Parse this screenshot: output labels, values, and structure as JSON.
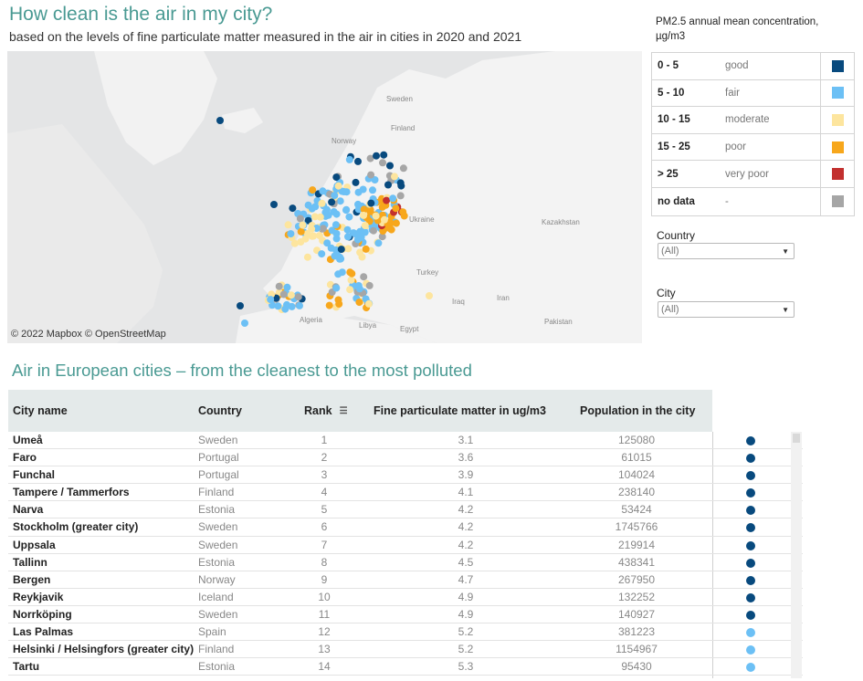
{
  "header": {
    "title": "How clean is the air in my city?",
    "subtitle": "based on the levels of fine particulate matter measured in the air in cities in 2020 and 2021"
  },
  "map": {
    "credit": "© 2022 Mapbox  © OpenStreetMap",
    "labels": [
      "Sweden",
      "Finland",
      "Norway",
      "Ukraine",
      "Kazakhstan",
      "Turkey",
      "Iraq",
      "Iran",
      "Algeria",
      "Libya",
      "Egypt",
      "Pakistan"
    ]
  },
  "legend": {
    "title": "PM2.5 annual mean concentration, µg/m3",
    "items": [
      {
        "range": "0 - 5",
        "label": "good",
        "color": "#084a7e"
      },
      {
        "range": "5 - 10",
        "label": "fair",
        "color": "#6cc0f5"
      },
      {
        "range": "10 - 15",
        "label": "moderate",
        "color": "#fde59e"
      },
      {
        "range": "15 - 25",
        "label": "poor",
        "color": "#f7a71c"
      },
      {
        "range": "> 25",
        "label": "very poor",
        "color": "#c2302f"
      },
      {
        "range": "no data",
        "label": "-",
        "color": "#a6a6a6"
      }
    ]
  },
  "filters": {
    "country_label": "Country",
    "country_value": "(All)",
    "city_label": "City",
    "city_value": "(All)"
  },
  "table": {
    "title": "Air in European cities – from the cleanest to the most polluted",
    "columns": {
      "city": "City name",
      "country": "Country",
      "rank": "Rank",
      "pm": "Fine particulate matter in ug/m3",
      "population": "Population in the city"
    },
    "rows": [
      {
        "city": "Umeå",
        "country": "Sweden",
        "rank": "1",
        "pm": "3.1",
        "population": "125080",
        "color": "#084a7e"
      },
      {
        "city": "Faro",
        "country": "Portugal",
        "rank": "2",
        "pm": "3.6",
        "population": "61015",
        "color": "#084a7e"
      },
      {
        "city": "Funchal",
        "country": "Portugal",
        "rank": "3",
        "pm": "3.9",
        "population": "104024",
        "color": "#084a7e"
      },
      {
        "city": "Tampere / Tammerfors",
        "country": "Finland",
        "rank": "4",
        "pm": "4.1",
        "population": "238140",
        "color": "#084a7e"
      },
      {
        "city": "Narva",
        "country": "Estonia",
        "rank": "5",
        "pm": "4.2",
        "population": "53424",
        "color": "#084a7e"
      },
      {
        "city": "Stockholm (greater city)",
        "country": "Sweden",
        "rank": "6",
        "pm": "4.2",
        "population": "1745766",
        "color": "#084a7e"
      },
      {
        "city": "Uppsala",
        "country": "Sweden",
        "rank": "7",
        "pm": "4.2",
        "population": "219914",
        "color": "#084a7e"
      },
      {
        "city": "Tallinn",
        "country": "Estonia",
        "rank": "8",
        "pm": "4.5",
        "population": "438341",
        "color": "#084a7e"
      },
      {
        "city": "Bergen",
        "country": "Norway",
        "rank": "9",
        "pm": "4.7",
        "population": "267950",
        "color": "#084a7e"
      },
      {
        "city": "Reykjavik",
        "country": "Iceland",
        "rank": "10",
        "pm": "4.9",
        "population": "132252",
        "color": "#084a7e"
      },
      {
        "city": "Norrköping",
        "country": "Sweden",
        "rank": "11",
        "pm": "4.9",
        "population": "140927",
        "color": "#084a7e"
      },
      {
        "city": "Las Palmas",
        "country": "Spain",
        "rank": "12",
        "pm": "5.2",
        "population": "381223",
        "color": "#6cc0f5"
      },
      {
        "city": "Helsinki / Helsingfors (greater city)",
        "country": "Finland",
        "rank": "13",
        "pm": "5.2",
        "population": "1154967",
        "color": "#6cc0f5"
      },
      {
        "city": "Tartu",
        "country": "Estonia",
        "rank": "14",
        "pm": "5.3",
        "population": "95430",
        "color": "#6cc0f5"
      }
    ]
  }
}
